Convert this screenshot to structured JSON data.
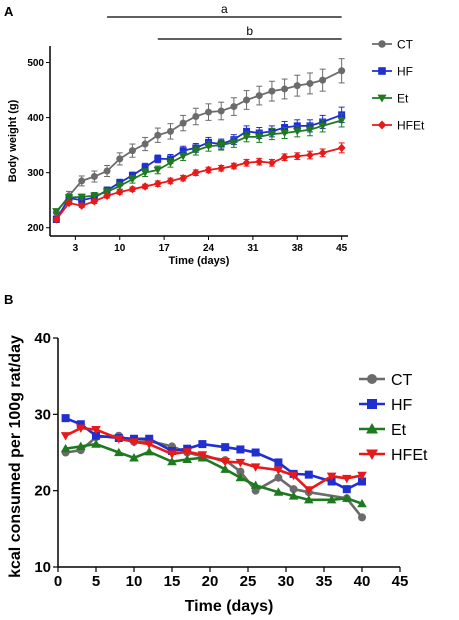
{
  "chart_data": [
    {
      "panel_label": "A",
      "type": "line",
      "xlabel": "Time (days)",
      "ylabel": "Body weight (g)",
      "xlim": [
        -1,
        46
      ],
      "ylim": [
        185,
        530
      ],
      "xticks": [
        3,
        10,
        17,
        24,
        31,
        38,
        45
      ],
      "yticks": [
        200,
        300,
        400,
        500
      ],
      "x": [
        0,
        2,
        4,
        6,
        8,
        10,
        12,
        14,
        16,
        18,
        20,
        22,
        24,
        26,
        28,
        30,
        32,
        34,
        36,
        38,
        40,
        42,
        45
      ],
      "series": [
        {
          "name": "CT",
          "color": "#6b6b6b",
          "marker": "circle",
          "values": [
            228,
            258,
            285,
            293,
            303,
            325,
            340,
            352,
            368,
            375,
            390,
            402,
            410,
            412,
            420,
            432,
            440,
            448,
            452,
            458,
            462,
            468,
            485
          ],
          "errors": [
            6,
            8,
            9,
            10,
            10,
            11,
            12,
            12,
            13,
            14,
            14,
            15,
            15,
            16,
            16,
            17,
            17,
            18,
            18,
            19,
            19,
            20,
            22
          ]
        },
        {
          "name": "HF",
          "color": "#1f2fd0",
          "marker": "square",
          "values": [
            215,
            254,
            250,
            255,
            268,
            282,
            295,
            310,
            325,
            325,
            340,
            345,
            355,
            352,
            360,
            375,
            372,
            375,
            382,
            385,
            385,
            392,
            405
          ],
          "errors": [
            3,
            4,
            5,
            5,
            6,
            6,
            6,
            7,
            7,
            8,
            8,
            8,
            9,
            9,
            9,
            10,
            10,
            10,
            11,
            11,
            11,
            12,
            14
          ]
        },
        {
          "name": "Et",
          "color": "#1f7a1f",
          "marker": "triangle-down",
          "values": [
            230,
            255,
            256,
            258,
            265,
            276,
            288,
            300,
            305,
            318,
            330,
            340,
            348,
            350,
            355,
            365,
            365,
            370,
            372,
            375,
            378,
            385,
            395
          ],
          "errors": [
            4,
            5,
            5,
            6,
            6,
            6,
            7,
            7,
            7,
            8,
            8,
            8,
            9,
            9,
            9,
            9,
            10,
            10,
            10,
            10,
            11,
            11,
            12
          ]
        },
        {
          "name": "HFEt",
          "color": "#e81919",
          "marker": "diamond",
          "values": [
            215,
            245,
            240,
            248,
            258,
            265,
            270,
            275,
            280,
            285,
            290,
            300,
            305,
            308,
            312,
            318,
            320,
            318,
            328,
            330,
            332,
            336,
            345
          ],
          "errors": [
            3,
            3,
            3,
            4,
            4,
            4,
            4,
            4,
            5,
            5,
            5,
            5,
            5,
            5,
            5,
            6,
            6,
            6,
            6,
            6,
            7,
            7,
            9
          ]
        }
      ],
      "significance": [
        {
          "label": "a",
          "from_x": 8,
          "to_x": 45
        },
        {
          "label": "b",
          "from_x": 16,
          "to_x": 45
        }
      ],
      "legend_position": "right"
    },
    {
      "panel_label": "B",
      "type": "line",
      "xlabel": "Time (days)",
      "ylabel": "kcal consumed per 100g rat/day",
      "xlim": [
        0,
        45
      ],
      "ylim": [
        10,
        40
      ],
      "xticks": [
        0,
        5,
        10,
        15,
        20,
        25,
        30,
        35,
        40,
        45
      ],
      "yticks": [
        10,
        20,
        30,
        40
      ],
      "series": [
        {
          "name": "CT",
          "color": "#6b6b6b",
          "marker": "circle",
          "x": [
            1,
            3,
            5,
            8,
            10,
            12,
            15,
            17,
            19,
            22,
            24,
            26,
            29,
            31,
            33,
            38,
            40
          ],
          "values": [
            25.0,
            25.3,
            27.0,
            27.2,
            26.4,
            26.5,
            25.8,
            25.0,
            24.5,
            24.0,
            22.5,
            20.0,
            21.7,
            20.2,
            19.8,
            19.0,
            16.5
          ]
        },
        {
          "name": "HF",
          "color": "#1f2fd0",
          "marker": "square",
          "x": [
            1,
            3,
            5,
            8,
            10,
            12,
            15,
            17,
            19,
            22,
            24,
            26,
            29,
            31,
            33,
            36,
            38,
            40
          ],
          "values": [
            29.5,
            28.7,
            27.2,
            26.9,
            26.8,
            26.8,
            25.2,
            25.5,
            26.1,
            25.7,
            25.4,
            25.0,
            23.7,
            22.2,
            22.1,
            21.2,
            20.2,
            21.2
          ]
        },
        {
          "name": "Et",
          "color": "#1f7a1f",
          "marker": "triangle-up",
          "x": [
            1,
            3,
            5,
            8,
            10,
            12,
            15,
            17,
            19,
            22,
            24,
            26,
            29,
            31,
            33,
            36,
            38,
            40
          ],
          "values": [
            25.5,
            25.8,
            26.1,
            25.0,
            24.3,
            25.1,
            23.8,
            24.1,
            24.3,
            22.8,
            21.7,
            20.7,
            19.8,
            19.3,
            18.8,
            18.8,
            19.0,
            18.3
          ]
        },
        {
          "name": "HFEt",
          "color": "#e81919",
          "marker": "triangle-down",
          "x": [
            1,
            3,
            5,
            8,
            10,
            12,
            15,
            17,
            19,
            22,
            24,
            26,
            29,
            31,
            33,
            36,
            38,
            40
          ],
          "values": [
            27.2,
            28.2,
            28.0,
            26.8,
            26.4,
            26.1,
            24.8,
            25.1,
            24.7,
            23.8,
            23.7,
            23.1,
            22.7,
            22.0,
            20.1,
            21.9,
            21.6,
            22.0
          ]
        }
      ],
      "legend_position": "right"
    }
  ]
}
